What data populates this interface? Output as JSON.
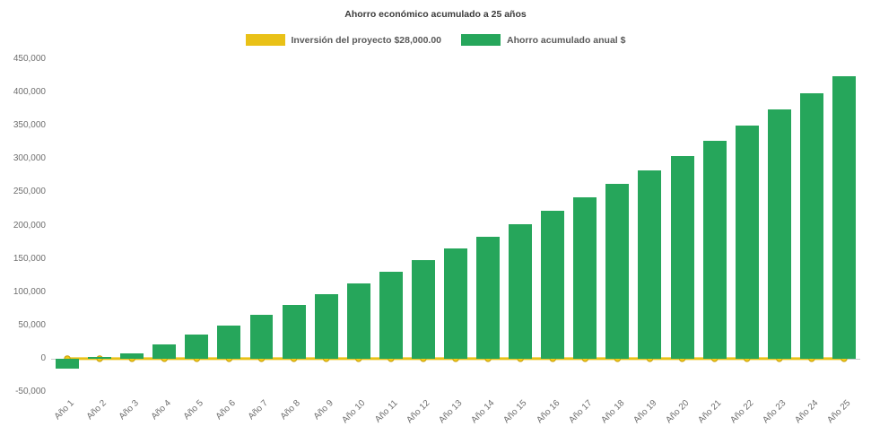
{
  "title": "Ahorro económico acumulado a 25 años",
  "legend": [
    {
      "label": "Inversión del proyecto $28,000.00",
      "color": "#e9c117"
    },
    {
      "label": "Ahorro acumulado anual $",
      "color": "#26a65b"
    }
  ],
  "chart_data": {
    "type": "bar",
    "title": "Ahorro económico acumulado a 25 años",
    "categories": [
      "Año 1",
      "Año 2",
      "Año 3",
      "Año 4",
      "Año 5",
      "Año 6",
      "Año 7",
      "Año 8",
      "Año 9",
      "Año 10",
      "Año 11",
      "Año 12",
      "Año 13",
      "Año 14",
      "Año 15",
      "Año 16",
      "Año 17",
      "Año 18",
      "Año 19",
      "Año 20",
      "Año 21",
      "Año 22",
      "Año 23",
      "Año 24",
      "Año 25"
    ],
    "series": [
      {
        "name": "Inversión del proyecto $28,000.00",
        "type": "line",
        "color": "#e9c117",
        "marker_fill": "#f0c917",
        "marker_border": "#c79e08",
        "values": [
          0,
          0,
          0,
          0,
          0,
          0,
          0,
          0,
          0,
          0,
          0,
          0,
          0,
          0,
          0,
          0,
          0,
          0,
          0,
          0,
          0,
          0,
          0,
          0,
          0
        ]
      },
      {
        "name": "Ahorro acumulado anual $",
        "type": "bar",
        "color": "#26a65b",
        "values": [
          -15000,
          2000,
          8000,
          22000,
          36000,
          50000,
          66000,
          81000,
          97000,
          113000,
          130000,
          148000,
          165000,
          183000,
          202000,
          222000,
          242000,
          262000,
          283000,
          304000,
          327000,
          350000,
          375000,
          399000,
          425000
        ]
      }
    ],
    "xlabel": "",
    "ylabel": "",
    "ylim": [
      -50000,
      450000
    ],
    "ytick_step": 50000,
    "grid": false,
    "legend_position": "top"
  }
}
